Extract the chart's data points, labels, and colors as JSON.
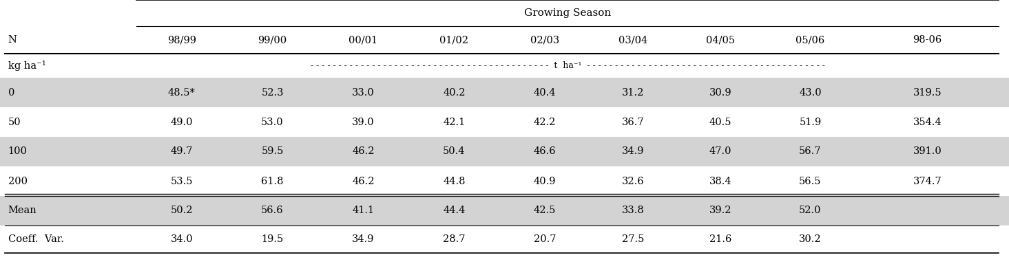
{
  "title": "Growing Season",
  "col_headers": [
    "",
    "98/99",
    "99/00",
    "00/01",
    "01/02",
    "02/03",
    "03/04",
    "04/05",
    "05/06",
    "98-06"
  ],
  "unit_label": "kg ha⁻¹",
  "unit_dash": "- - - - - - - - - - - - - - - - - - - - - - - - - - - - - - - - - - - - - - - - - - -  t  ha⁻¹  - - - - - - - - - - - - - - - - - - - - - - - - - - - - - - - - - - - - - - - - - - -",
  "rows": [
    [
      "0",
      "48.5*",
      "52.3",
      "33.0",
      "40.2",
      "40.4",
      "31.2",
      "30.9",
      "43.0",
      "319.5"
    ],
    [
      "50",
      "49.0",
      "53.0",
      "39.0",
      "42.1",
      "42.2",
      "36.7",
      "40.5",
      "51.9",
      "354.4"
    ],
    [
      "100",
      "49.7",
      "59.5",
      "46.2",
      "50.4",
      "46.6",
      "34.9",
      "47.0",
      "56.7",
      "391.0"
    ],
    [
      "200",
      "53.5",
      "61.8",
      "46.2",
      "44.8",
      "40.9",
      "32.6",
      "38.4",
      "56.5",
      "374.7"
    ]
  ],
  "mean_row": [
    "Mean",
    "50.2",
    "56.6",
    "41.1",
    "44.4",
    "42.5",
    "33.8",
    "39.2",
    "52.0",
    ""
  ],
  "cv_row": [
    "Coeff.  Var.",
    "34.0",
    "19.5",
    "34.9",
    "28.7",
    "20.7",
    "27.5",
    "21.6",
    "30.2",
    ""
  ],
  "N_label": "N",
  "shaded_color": "#d3d3d3",
  "white_color": "#ffffff",
  "font_size": 10.5,
  "header_font_size": 11
}
